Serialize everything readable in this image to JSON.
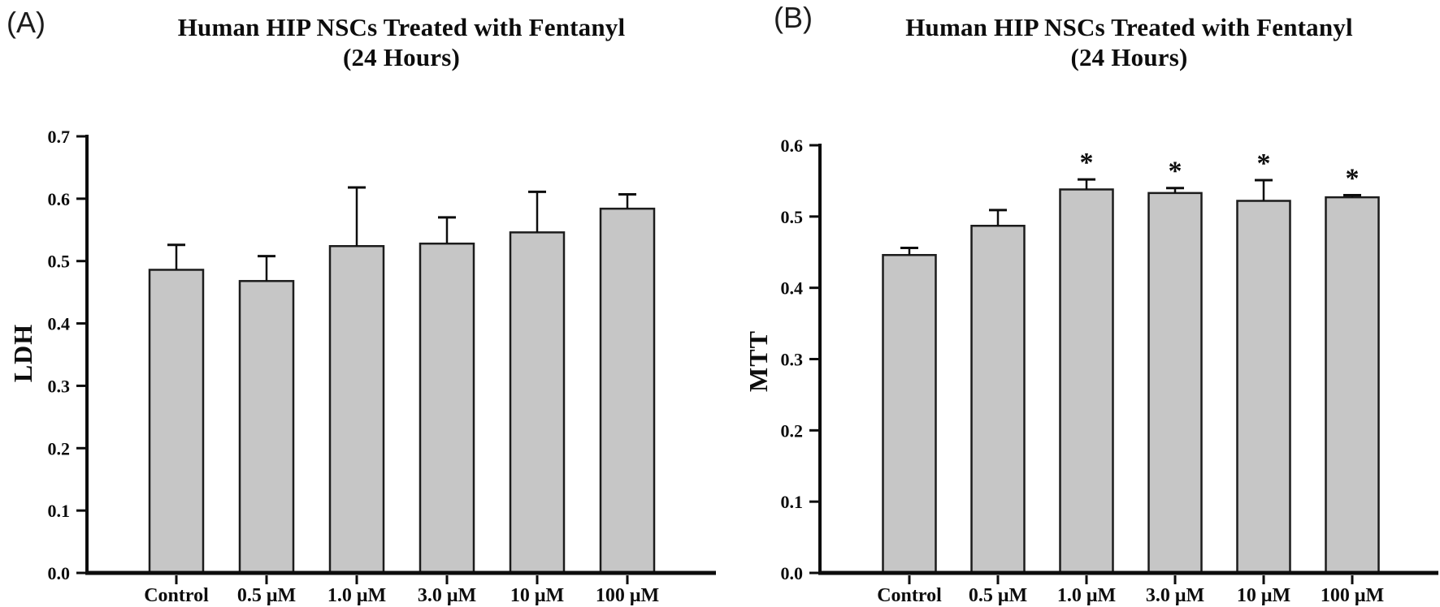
{
  "figure": {
    "background": "#ffffff",
    "text_color": "#0d0d0d"
  },
  "panels": [
    {
      "label": "(A)",
      "title_line1": "Human HIP NSCs Treated with Fentanyl",
      "title_line2": "(24 Hours)",
      "ylabel": "LDH"
    },
    {
      "label": "(B)",
      "title_line1": "Human HIP NSCs Treated with Fentanyl",
      "title_line2": "(24 Hours)",
      "ylabel": "MTT"
    }
  ],
  "chart_data": [
    {
      "type": "bar",
      "panel": "A",
      "title": "Human HIP NSCs Treated with Fentanyl (24 Hours)",
      "xlabel": "",
      "ylabel": "LDH",
      "categories": [
        "Control",
        "0.5 μM",
        "1.0 μM",
        "3.0 μM",
        "10 μM",
        "100 μM"
      ],
      "values": [
        0.486,
        0.468,
        0.524,
        0.528,
        0.546,
        0.584
      ],
      "errors_plus": [
        0.04,
        0.04,
        0.094,
        0.042,
        0.065,
        0.023
      ],
      "significance": [
        "",
        "",
        "",
        "",
        "",
        ""
      ],
      "ylim": [
        0.0,
        0.7
      ],
      "ytick_step": 0.1,
      "grid": false,
      "legend": null,
      "bar_fill": "#c6c6c6",
      "bar_edge": "#1c1c1c"
    },
    {
      "type": "bar",
      "panel": "B",
      "title": "Human HIP NSCs Treated with Fentanyl (24 Hours)",
      "xlabel": "",
      "ylabel": "MTT",
      "categories": [
        "Control",
        "0.5 μM",
        "1.0 μM",
        "3.0 μM",
        "10 μM",
        "100 μM"
      ],
      "values": [
        0.446,
        0.487,
        0.538,
        0.533,
        0.522,
        0.527
      ],
      "errors_plus": [
        0.01,
        0.022,
        0.014,
        0.007,
        0.029,
        0.003
      ],
      "significance": [
        "",
        "",
        "*",
        "*",
        "*",
        "*"
      ],
      "ylim": [
        0.0,
        0.6
      ],
      "ytick_step": 0.1,
      "grid": false,
      "legend": null,
      "bar_fill": "#c6c6c6",
      "bar_edge": "#1c1c1c"
    }
  ]
}
